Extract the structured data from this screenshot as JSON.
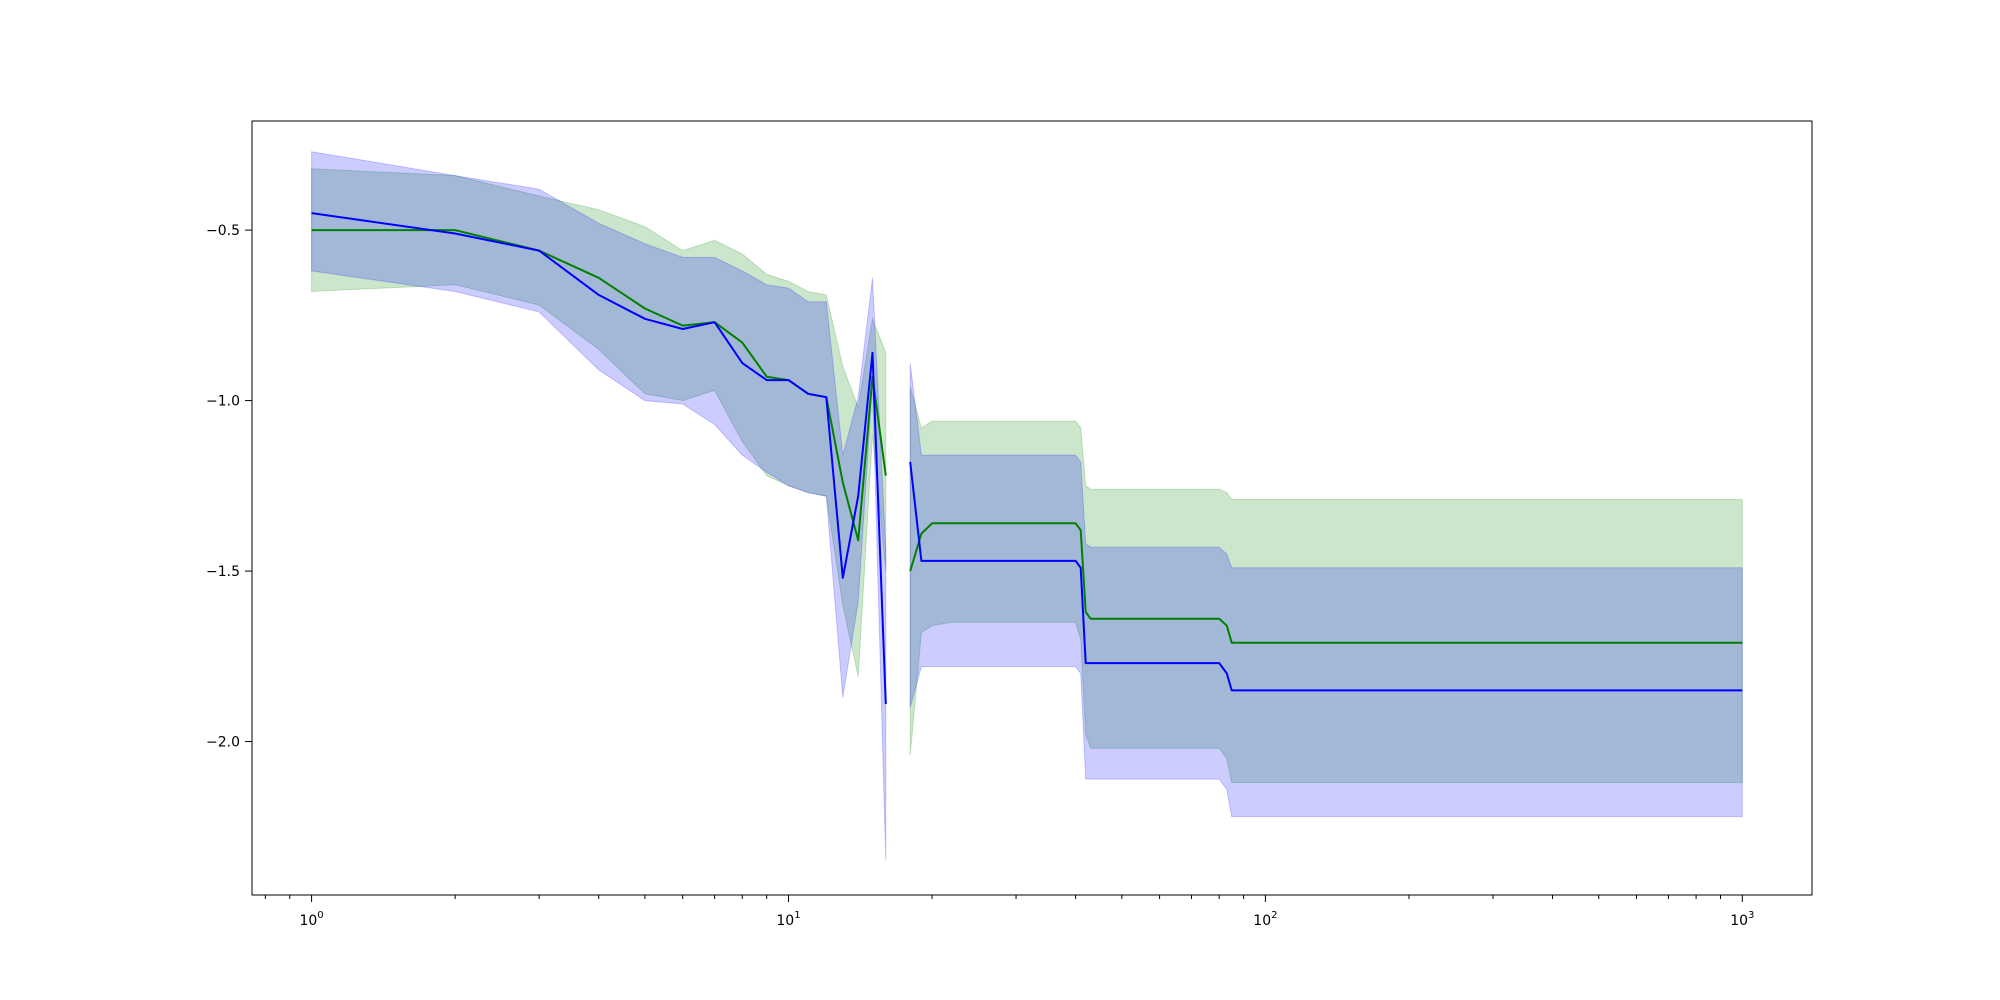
{
  "chart_data": {
    "type": "line",
    "title": "",
    "xlabel": "",
    "ylabel": "",
    "xscale": "log",
    "xlim": [
      0.75,
      1400
    ],
    "ylim": [
      -2.45,
      -0.18
    ],
    "grid": false,
    "legend": "none",
    "x_ticks": [
      {
        "value": 1,
        "base": "10",
        "exp": "0"
      },
      {
        "value": 10,
        "base": "10",
        "exp": "1"
      },
      {
        "value": 100,
        "base": "10",
        "exp": "2"
      },
      {
        "value": 1000,
        "base": "10",
        "exp": "3"
      }
    ],
    "y_ticks": [
      {
        "value": -0.5,
        "label": "−0.5"
      },
      {
        "value": -1.0,
        "label": "−1.0"
      },
      {
        "value": -1.5,
        "label": "−1.5"
      },
      {
        "value": -2.0,
        "label": "−2.0"
      }
    ],
    "series": [
      {
        "color": "#008000",
        "band_color": "#008000",
        "segments": [
          {
            "x": [
              1,
              2,
              3,
              4,
              5,
              6,
              7,
              8,
              9,
              10,
              11,
              12,
              13,
              14,
              15,
              16
            ],
            "y": [
              -0.5,
              -0.5,
              -0.56,
              -0.64,
              -0.73,
              -0.78,
              -0.77,
              -0.83,
              -0.93,
              -0.94,
              -0.98,
              -0.99,
              -1.24,
              -1.41,
              -0.93,
              -1.22
            ],
            "lower": [
              -0.68,
              -0.66,
              -0.72,
              -0.85,
              -0.98,
              -1.0,
              -0.97,
              -1.12,
              -1.22,
              -1.25,
              -1.27,
              -1.28,
              -1.6,
              -1.81,
              -1.1,
              -1.5
            ],
            "upper": [
              -0.32,
              -0.34,
              -0.4,
              -0.44,
              -0.49,
              -0.56,
              -0.53,
              -0.57,
              -0.63,
              -0.65,
              -0.68,
              -0.69,
              -0.9,
              -1.02,
              -0.76,
              -0.86
            ]
          },
          {
            "x": [
              18,
              19,
              20,
              22,
              30,
              40,
              41,
              42,
              43,
              60,
              80,
              83,
              85,
              1000
            ],
            "y": [
              -1.5,
              -1.39,
              -1.36,
              -1.36,
              -1.36,
              -1.36,
              -1.38,
              -1.62,
              -1.64,
              -1.64,
              -1.64,
              -1.66,
              -1.71,
              -1.71
            ],
            "lower": [
              -2.04,
              -1.68,
              -1.66,
              -1.65,
              -1.65,
              -1.65,
              -1.7,
              -1.98,
              -2.02,
              -2.02,
              -2.02,
              -2.05,
              -2.12,
              -2.12
            ],
            "upper": [
              -0.96,
              -1.08,
              -1.06,
              -1.06,
              -1.06,
              -1.06,
              -1.08,
              -1.25,
              -1.26,
              -1.26,
              -1.26,
              -1.27,
              -1.29,
              -1.29
            ]
          }
        ]
      },
      {
        "color": "#0000ff",
        "band_color": "#0000ff",
        "segments": [
          {
            "x": [
              1,
              2,
              3,
              4,
              5,
              6,
              7,
              8,
              9,
              10,
              11,
              12,
              13,
              14,
              15,
              16
            ],
            "y": [
              -0.45,
              -0.51,
              -0.56,
              -0.69,
              -0.76,
              -0.79,
              -0.77,
              -0.89,
              -0.94,
              -0.94,
              -0.98,
              -0.99,
              -1.52,
              -1.28,
              -0.86,
              -1.89
            ],
            "lower": [
              -0.62,
              -0.68,
              -0.74,
              -0.91,
              -1.0,
              -1.01,
              -1.07,
              -1.16,
              -1.21,
              -1.25,
              -1.27,
              -1.28,
              -1.87,
              -1.59,
              -0.95,
              -2.35
            ],
            "upper": [
              -0.27,
              -0.34,
              -0.38,
              -0.48,
              -0.54,
              -0.58,
              -0.58,
              -0.62,
              -0.66,
              -0.67,
              -0.71,
              -0.71,
              -1.16,
              -0.99,
              -0.64,
              -1.44
            ]
          },
          {
            "x": [
              18,
              19,
              20,
              22,
              30,
              40,
              41,
              42,
              43,
              60,
              80,
              83,
              85,
              1000
            ],
            "y": [
              -1.18,
              -1.47,
              -1.47,
              -1.47,
              -1.47,
              -1.47,
              -1.49,
              -1.77,
              -1.77,
              -1.77,
              -1.77,
              -1.8,
              -1.85,
              -1.85
            ],
            "lower": [
              -1.9,
              -1.78,
              -1.78,
              -1.78,
              -1.78,
              -1.78,
              -1.8,
              -2.11,
              -2.11,
              -2.11,
              -2.11,
              -2.14,
              -2.22,
              -2.22
            ],
            "upper": [
              -0.89,
              -1.16,
              -1.16,
              -1.16,
              -1.16,
              -1.16,
              -1.18,
              -1.42,
              -1.43,
              -1.43,
              -1.43,
              -1.45,
              -1.49,
              -1.49
            ]
          }
        ]
      }
    ]
  }
}
